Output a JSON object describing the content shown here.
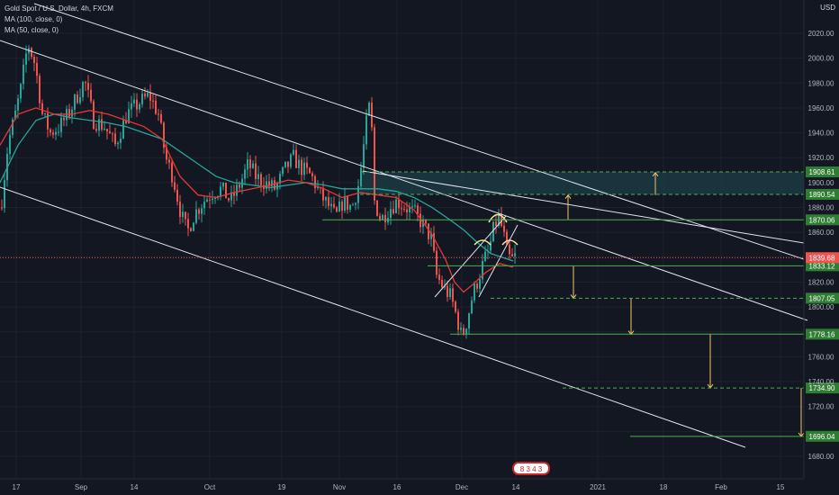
{
  "header": {
    "symbol_line": "Gold Spot / U.S. Dollar, 4h, FXCM",
    "ma100": "MA (100, close, 0)",
    "ma50": "MA (50, close, 0)",
    "currency": "USD"
  },
  "badge": {
    "text": "8 3 4 3"
  },
  "colors": {
    "background": "#131722",
    "up": "#26a69a",
    "down": "#ef5350",
    "ma100": "#26a69a",
    "ma50": "#e53935",
    "channel": "#e0e3eb",
    "level": "#4caf50",
    "arrow": "#f5c26b",
    "current": "#ef5350"
  },
  "chart_data": {
    "type": "candlestick",
    "symbol": "XAUUSD",
    "timeframe": "4h",
    "y_range": [
      1670,
      2030
    ],
    "x_labels": [
      "17",
      "Sep",
      "14",
      "Oct",
      "19",
      "Nov",
      "16",
      "Dec",
      "14",
      "2021",
      "18",
      "Feb",
      "15"
    ],
    "y_ticks": [
      "2020.00",
      "2000.00",
      "1980.00",
      "1960.00",
      "1940.00",
      "1920.00",
      "1900.00",
      "1880.00",
      "1860.00",
      "1840.00",
      "1820.00",
      "1800.00",
      "1780.00",
      "1760.00",
      "1740.00",
      "1720.00",
      "1700.00",
      "1680.00"
    ],
    "current_price": {
      "value": 1839.68,
      "label": "1839.68"
    },
    "levels": [
      {
        "value": 1908.61,
        "label": "1908.61",
        "style": "dashed"
      },
      {
        "value": 1890.54,
        "label": "1890.54",
        "style": "dashed"
      },
      {
        "value": 1870.06,
        "label": "1870.06",
        "style": "solid"
      },
      {
        "value": 1833.12,
        "label": "1833.12",
        "style": "solid"
      },
      {
        "value": 1807.05,
        "label": "1807.05",
        "style": "dashed"
      },
      {
        "value": 1778.16,
        "label": "1778.16",
        "style": "solid"
      },
      {
        "value": 1734.9,
        "label": "1734.90",
        "style": "dashed"
      },
      {
        "value": 1696.04,
        "label": "1696.04",
        "style": "solid"
      }
    ],
    "price_path": [
      [
        0,
        1880
      ],
      [
        8,
        1932
      ],
      [
        16,
        1955
      ],
      [
        22,
        1975
      ],
      [
        30,
        2012
      ],
      [
        38,
        1995
      ],
      [
        46,
        1955
      ],
      [
        55,
        1940
      ],
      [
        65,
        1945
      ],
      [
        75,
        1955
      ],
      [
        85,
        1970
      ],
      [
        93,
        1982
      ],
      [
        103,
        1950
      ],
      [
        115,
        1945
      ],
      [
        127,
        1930
      ],
      [
        140,
        1955
      ],
      [
        155,
        1965
      ],
      [
        165,
        1970
      ],
      [
        175,
        1955
      ],
      [
        183,
        1920
      ],
      [
        191,
        1905
      ],
      [
        200,
        1875
      ],
      [
        207,
        1860
      ],
      [
        215,
        1875
      ],
      [
        225,
        1885
      ],
      [
        235,
        1892
      ],
      [
        245,
        1895
      ],
      [
        255,
        1885
      ],
      [
        265,
        1898
      ],
      [
        275,
        1915
      ],
      [
        283,
        1905
      ],
      [
        293,
        1900
      ],
      [
        305,
        1895
      ],
      [
        315,
        1910
      ],
      [
        325,
        1920
      ],
      [
        333,
        1912
      ],
      [
        345,
        1905
      ],
      [
        355,
        1890
      ],
      [
        365,
        1880
      ],
      [
        372,
        1872
      ],
      [
        380,
        1885
      ],
      [
        390,
        1880
      ],
      [
        398,
        1900
      ],
      [
        404,
        1935
      ],
      [
        408,
        1960
      ],
      [
        411,
        1960
      ],
      [
        415,
        1885
      ],
      [
        422,
        1870
      ],
      [
        430,
        1878
      ],
      [
        440,
        1885
      ],
      [
        450,
        1880
      ],
      [
        460,
        1875
      ],
      [
        470,
        1865
      ],
      [
        478,
        1855
      ],
      [
        484,
        1825
      ],
      [
        492,
        1815
      ],
      [
        500,
        1808
      ],
      [
        507,
        1790
      ],
      [
        512,
        1775
      ],
      [
        518,
        1790
      ],
      [
        524,
        1810
      ],
      [
        530,
        1822
      ],
      [
        537,
        1838
      ],
      [
        542,
        1845
      ],
      [
        548,
        1865
      ],
      [
        553,
        1872
      ],
      [
        558,
        1860
      ],
      [
        563,
        1840
      ],
      [
        568,
        1838
      ],
      [
        573,
        1842
      ]
    ]
  },
  "ma100_path": [
    [
      0,
      1900
    ],
    [
      20,
      1930
    ],
    [
      40,
      1950
    ],
    [
      60,
      1955
    ],
    [
      80,
      1952
    ],
    [
      100,
      1950
    ],
    [
      120,
      1948
    ],
    [
      140,
      1945
    ],
    [
      160,
      1940
    ],
    [
      180,
      1935
    ],
    [
      200,
      1925
    ],
    [
      220,
      1915
    ],
    [
      240,
      1905
    ],
    [
      260,
      1900
    ],
    [
      280,
      1898
    ],
    [
      300,
      1896
    ],
    [
      320,
      1898
    ],
    [
      340,
      1900
    ],
    [
      360,
      1898
    ],
    [
      380,
      1895
    ],
    [
      400,
      1895
    ],
    [
      420,
      1895
    ],
    [
      440,
      1893
    ],
    [
      460,
      1888
    ],
    [
      480,
      1880
    ],
    [
      500,
      1870
    ],
    [
      515,
      1862
    ],
    [
      530,
      1852
    ],
    [
      545,
      1843
    ],
    [
      570,
      1837
    ]
  ],
  "ma50_path": [
    [
      0,
      1930
    ],
    [
      20,
      1955
    ],
    [
      40,
      1960
    ],
    [
      60,
      1955
    ],
    [
      80,
      1955
    ],
    [
      100,
      1958
    ],
    [
      120,
      1955
    ],
    [
      140,
      1950
    ],
    [
      160,
      1945
    ],
    [
      180,
      1935
    ],
    [
      200,
      1905
    ],
    [
      220,
      1890
    ],
    [
      240,
      1888
    ],
    [
      260,
      1892
    ],
    [
      280,
      1895
    ],
    [
      300,
      1898
    ],
    [
      320,
      1902
    ],
    [
      340,
      1900
    ],
    [
      360,
      1895
    ],
    [
      380,
      1888
    ],
    [
      400,
      1892
    ],
    [
      420,
      1890
    ],
    [
      440,
      1888
    ],
    [
      460,
      1878
    ],
    [
      480,
      1858
    ],
    [
      495,
      1838
    ],
    [
      505,
      1820
    ],
    [
      515,
      1812
    ],
    [
      525,
      1818
    ],
    [
      540,
      1828
    ],
    [
      555,
      1835
    ],
    [
      570,
      1832
    ]
  ]
}
